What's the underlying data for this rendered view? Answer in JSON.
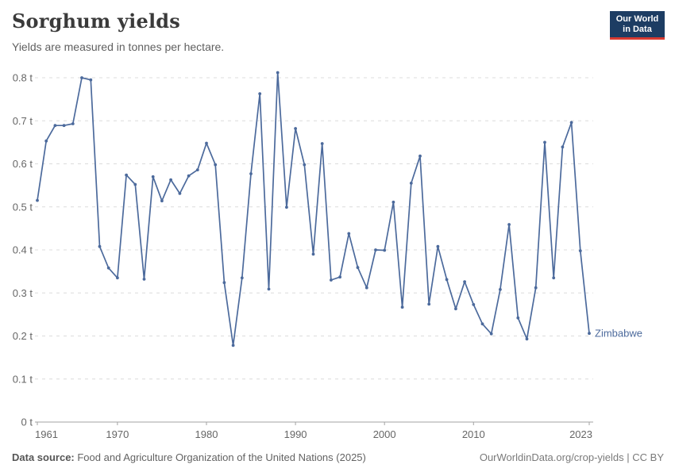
{
  "header": {
    "title": "Sorghum yields",
    "subtitle": "Yields are measured in tonnes per hectare.",
    "logo_line1": "Our World",
    "logo_line2": "in Data"
  },
  "chart_data": {
    "type": "line",
    "title": "Sorghum yields",
    "subtitle": "Yields are measured in tonnes per hectare.",
    "unit": "tonnes per hectare",
    "ylim": [
      0,
      0.8
    ],
    "yticks": [
      0,
      0.1,
      0.2,
      0.3,
      0.4,
      0.5,
      0.6,
      0.7,
      0.8
    ],
    "ytick_labels": [
      "0 t",
      "0.1 t",
      "0.2 t",
      "0.3 t",
      "0.4 t",
      "0.5 t",
      "0.6 t",
      "0.7 t",
      "0.8 t"
    ],
    "xticks": [
      1961,
      1970,
      1980,
      1990,
      2000,
      2010,
      2023
    ],
    "grid": "horizontal-dashed",
    "legend_position": "end-of-line-label",
    "series": [
      {
        "name": "Zimbabwe",
        "color": "#4c6a9c",
        "x": [
          1961,
          1962,
          1963,
          1964,
          1965,
          1966,
          1967,
          1968,
          1969,
          1970,
          1971,
          1972,
          1973,
          1974,
          1975,
          1976,
          1977,
          1978,
          1979,
          1980,
          1981,
          1982,
          1983,
          1984,
          1985,
          1986,
          1987,
          1988,
          1989,
          1990,
          1991,
          1992,
          1993,
          1994,
          1995,
          1996,
          1997,
          1998,
          1999,
          2000,
          2001,
          2002,
          2003,
          2004,
          2005,
          2006,
          2007,
          2008,
          2009,
          2010,
          2011,
          2012,
          2013,
          2014,
          2015,
          2016,
          2017,
          2018,
          2019,
          2020,
          2021,
          2022,
          2023
        ],
        "values": [
          0.515,
          0.653,
          0.689,
          0.689,
          0.693,
          0.8,
          0.795,
          0.408,
          0.358,
          0.335,
          0.574,
          0.552,
          0.332,
          0.57,
          0.514,
          0.563,
          0.531,
          0.572,
          0.586,
          0.648,
          0.598,
          0.324,
          0.178,
          0.335,
          0.577,
          0.763,
          0.309,
          0.812,
          0.499,
          0.682,
          0.598,
          0.39,
          0.647,
          0.33,
          0.337,
          0.438,
          0.359,
          0.312,
          0.4,
          0.399,
          0.511,
          0.267,
          0.555,
          0.618,
          0.274,
          0.408,
          0.331,
          0.263,
          0.326,
          0.273,
          0.228,
          0.205,
          0.308,
          0.459,
          0.242,
          0.193,
          0.312,
          0.65,
          0.335,
          0.639,
          0.696,
          0.398,
          0.206
        ]
      }
    ]
  },
  "footer": {
    "source_label": "Data source:",
    "source_text": " Food and Agriculture Organization of the United Nations (2025)",
    "rights": "OurWorldinData.org/crop-yields | CC BY"
  },
  "colors": {
    "line": "#4c6a9c",
    "grid": "#dcdcdc",
    "axis": "#a3a3a3",
    "tick_text": "#666666",
    "logo_bg": "#1d3d63",
    "logo_red": "#d93a31"
  }
}
